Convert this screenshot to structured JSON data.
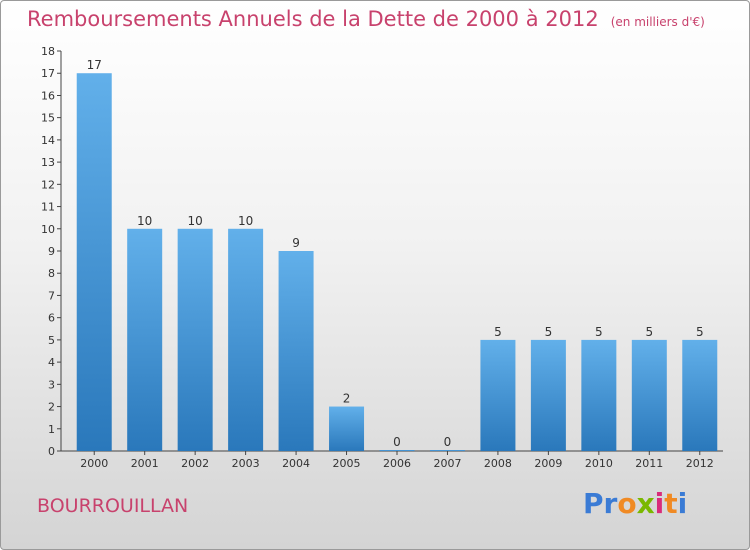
{
  "title": "Remboursements Annuels de la Dette de 2000 à 2012",
  "unit_note": "(en milliers d'€)",
  "commune": "BOURROUILLAN",
  "logo": {
    "letters": [
      "P",
      "r",
      "o",
      "x",
      "i",
      "t",
      "i"
    ],
    "colors": [
      "#3a7bd5",
      "#3a7bd5",
      "#f08a24",
      "#7ab800",
      "#d92b7b",
      "#f08a24",
      "#3a7bd5"
    ]
  },
  "colors": {
    "title": "#c8426d",
    "bar_top": "#62b0ea",
    "bar_bottom": "#2a78bb"
  },
  "chart_data": {
    "type": "bar",
    "categories": [
      "2000",
      "2001",
      "2002",
      "2003",
      "2004",
      "2005",
      "2006",
      "2007",
      "2008",
      "2009",
      "2010",
      "2011",
      "2012"
    ],
    "values": [
      17,
      10,
      10,
      10,
      9,
      2,
      0,
      0,
      5,
      5,
      5,
      5,
      5
    ],
    "ylim": [
      0,
      18
    ],
    "yticks": [
      0,
      1,
      2,
      3,
      4,
      5,
      6,
      7,
      8,
      9,
      10,
      11,
      12,
      13,
      14,
      15,
      16,
      17,
      18
    ],
    "title": "Remboursements Annuels de la Dette de 2000 à 2012",
    "xlabel": "",
    "ylabel": "",
    "grid": false
  }
}
